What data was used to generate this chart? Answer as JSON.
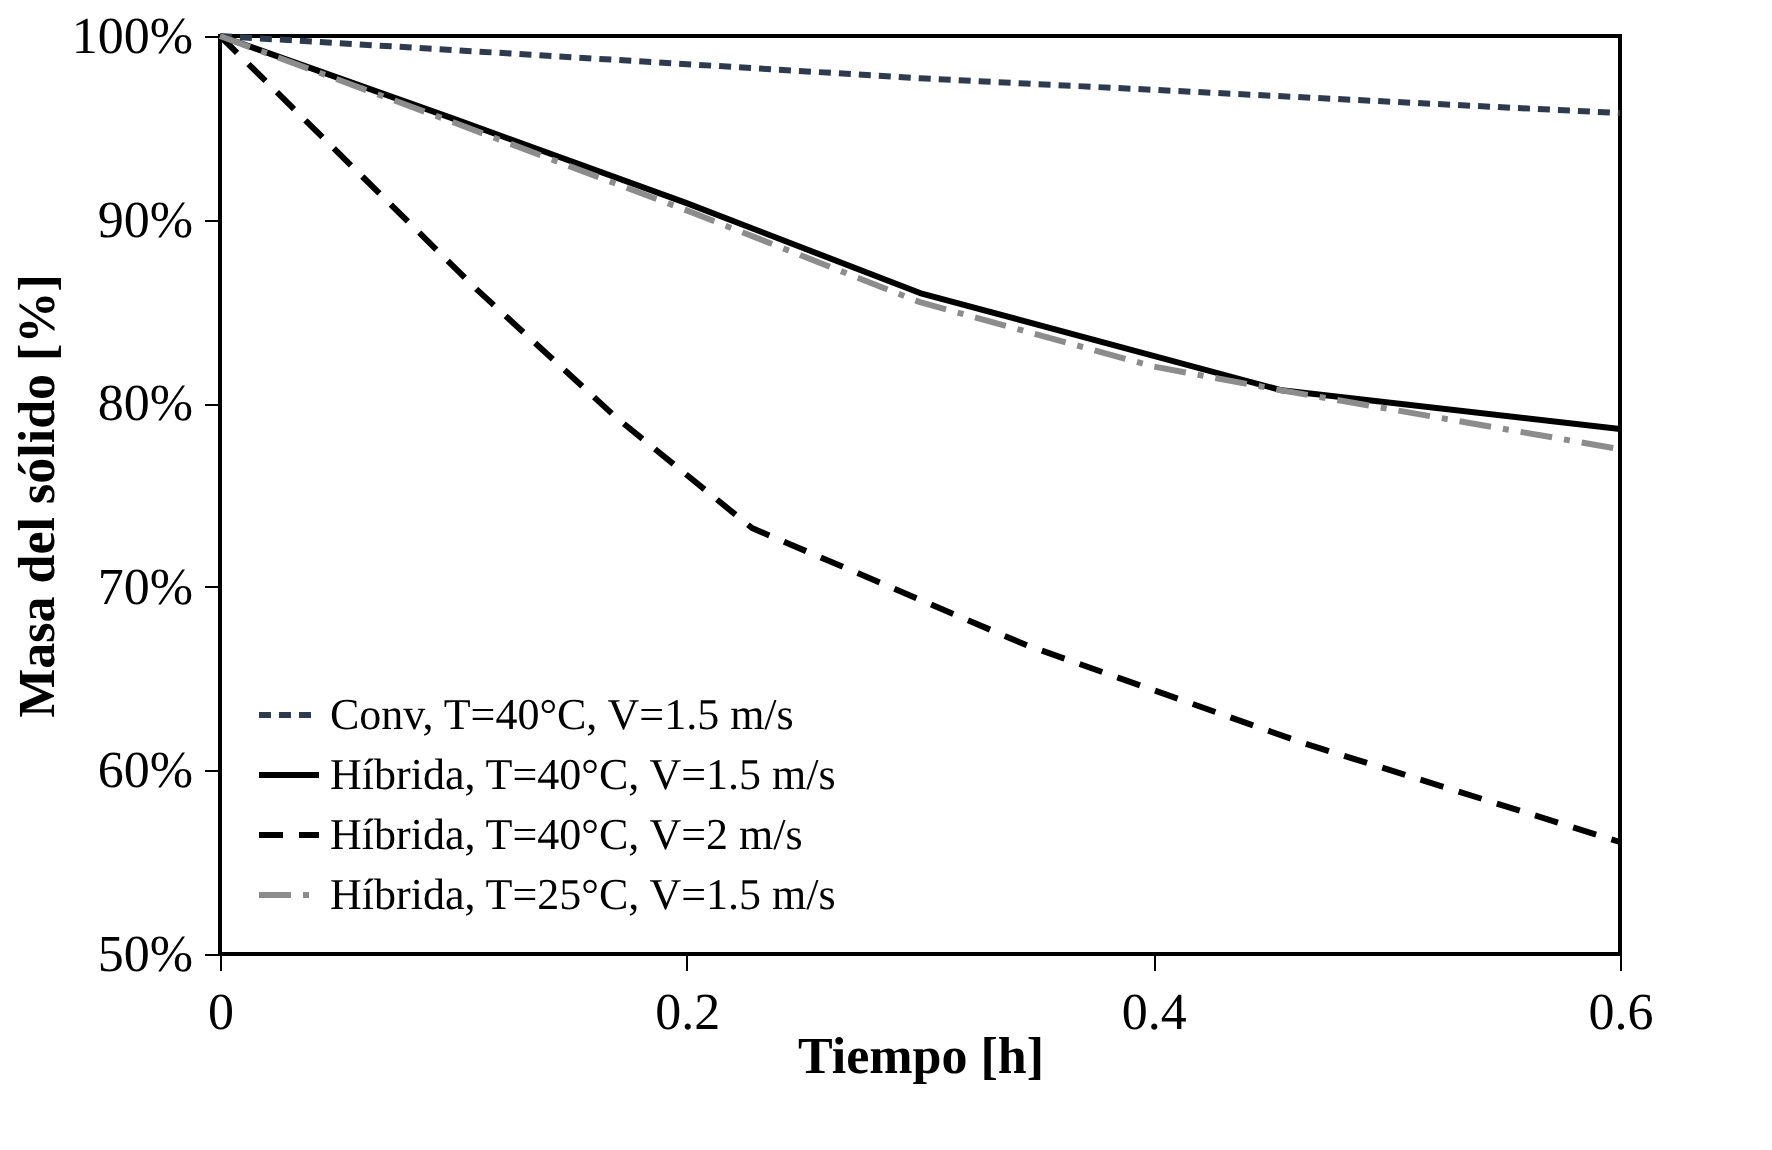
{
  "chart_data": {
    "type": "line",
    "xlabel": "Tiempo [h]",
    "ylabel": "Masa del sólido [%]",
    "xlim": [
      0,
      0.6
    ],
    "xticks": [
      0,
      0.2,
      0.4,
      0.6
    ],
    "ylim": [
      50,
      100
    ],
    "yticks": [
      {
        "value": 50,
        "label": "50%"
      },
      {
        "value": 60,
        "label": "60%"
      },
      {
        "value": 70,
        "label": "70%"
      },
      {
        "value": 80,
        "label": "80%"
      },
      {
        "value": 90,
        "label": "90%"
      },
      {
        "value": 100,
        "label": "100%"
      }
    ],
    "grid": false,
    "legend": "bottom left",
    "marker": "none",
    "series": [
      {
        "name": "Conv, T=40°C, V=1.5 m/s",
        "color": "#2e3b4e",
        "line_style": "dotted",
        "x": [
          0,
          0.3,
          0.6
        ],
        "values": [
          100,
          97.7,
          95.8
        ]
      },
      {
        "name": "Híbrida, T=40°C, V=1.5 m/s",
        "color": "#000000",
        "line_style": "solid",
        "x": [
          0,
          0.1,
          0.2,
          0.3,
          0.455,
          0.6
        ],
        "values": [
          100,
          95.5,
          90.9,
          86.0,
          80.7,
          78.6
        ]
      },
      {
        "name": "Híbrida, T=40°C, V=2 m/s",
        "color": "#000000",
        "line_style": "dashed",
        "x": [
          0,
          0.11,
          0.17,
          0.228,
          0.346,
          0.464,
          0.6
        ],
        "values": [
          100,
          86.2,
          79.2,
          73.2,
          66.8,
          61.5,
          56.1
        ]
      },
      {
        "name": "Híbrida, T=25°C, V=1.5 m/s",
        "color": "#8c8c8c",
        "line_style": "dashdot",
        "x": [
          0,
          0.1,
          0.2,
          0.3,
          0.4,
          0.455,
          0.6
        ],
        "values": [
          100,
          95.3,
          90.5,
          85.5,
          82.0,
          80.7,
          77.5
        ]
      }
    ]
  }
}
